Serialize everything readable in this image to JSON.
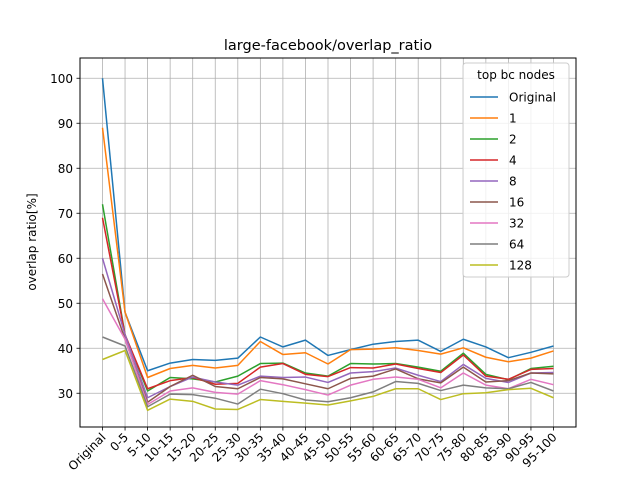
{
  "chart_data": {
    "type": "line",
    "title": "large-facebook/overlap_ratio",
    "xlabel": "",
    "ylabel": "overlap ratio[%]",
    "grid": true,
    "legend_title": "top bc nodes",
    "legend_position": "top-right",
    "ylim": [
      22.5,
      104.5
    ],
    "yticks": [
      30,
      40,
      50,
      60,
      70,
      80,
      90,
      100
    ],
    "categories": [
      "Original",
      "0-5",
      "5-10",
      "10-15",
      "15-20",
      "20-25",
      "25-30",
      "30-35",
      "35-40",
      "40-45",
      "45-50",
      "50-55",
      "55-60",
      "60-65",
      "65-70",
      "70-75",
      "75-80",
      "80-85",
      "85-90",
      "90-95",
      "95-100"
    ],
    "series": [
      {
        "name": "Original",
        "color": "#1f77b4",
        "values": [
          100,
          48,
          35,
          36.7,
          37.5,
          37.3,
          37.8,
          42.5,
          40.3,
          41.8,
          38.4,
          39.7,
          40.9,
          41.5,
          41.8,
          39.3,
          42,
          40.3,
          37.9,
          39.1,
          40.5
        ]
      },
      {
        "name": "1",
        "color": "#ff7f0e",
        "values": [
          89,
          48,
          33.5,
          35.5,
          36.2,
          35.6,
          36.2,
          41.5,
          38.6,
          39,
          36.5,
          39.7,
          39.8,
          40.1,
          39.5,
          38.7,
          40.1,
          38,
          37,
          37.8,
          39.4
        ]
      },
      {
        "name": "2",
        "color": "#2ca02c",
        "values": [
          72,
          43,
          30.5,
          33.5,
          33.2,
          32.5,
          33.8,
          36.6,
          36.7,
          34.5,
          33.8,
          36.6,
          36.5,
          36.6,
          35.8,
          34.9,
          38.9,
          34.2,
          33,
          35.5,
          36
        ]
      },
      {
        "name": "4",
        "color": "#d62728",
        "values": [
          69,
          43,
          31,
          32.8,
          33.5,
          32,
          32.2,
          35.8,
          36.6,
          34.2,
          33.7,
          35.7,
          35.6,
          36.5,
          35.5,
          34.6,
          38.5,
          33.8,
          33.1,
          35.3,
          35.5
        ]
      },
      {
        "name": "8",
        "color": "#9467bd",
        "values": [
          60,
          43,
          29,
          31.5,
          33.6,
          32.5,
          31.8,
          33.8,
          33.5,
          33.6,
          32.4,
          34.5,
          34.8,
          35.6,
          34,
          32.6,
          36.4,
          33.3,
          32.4,
          34.5,
          34.6
        ]
      },
      {
        "name": "16",
        "color": "#8c564b",
        "values": [
          56.5,
          42,
          28,
          31.5,
          34,
          31.5,
          31,
          33.5,
          33.2,
          32.1,
          31,
          33.3,
          33.8,
          35.4,
          33.2,
          32.3,
          35.8,
          32.5,
          32.8,
          34.5,
          34.3
        ]
      },
      {
        "name": "32",
        "color": "#e377c2",
        "values": [
          51,
          42,
          27.5,
          30.5,
          31.2,
          30.2,
          29.8,
          32.8,
          31.9,
          30.8,
          29.6,
          31.8,
          33.1,
          33.6,
          33.1,
          31.2,
          34.5,
          31.8,
          31,
          33.1,
          31.9
        ]
      },
      {
        "name": "64",
        "color": "#7f7f7f",
        "values": [
          42.5,
          40.5,
          27,
          29.8,
          29.7,
          28.9,
          27.6,
          30.9,
          29.9,
          28.5,
          28.1,
          29,
          30.3,
          32.6,
          32.2,
          30.6,
          31.8,
          31.2,
          31,
          32.4,
          30.5
        ]
      },
      {
        "name": "128",
        "color": "#bcbd22",
        "values": [
          37.5,
          39.5,
          26.2,
          28.7,
          28.2,
          26.5,
          26.4,
          28.6,
          28.2,
          27.8,
          27.4,
          28.3,
          29.3,
          31,
          31,
          28.6,
          29.9,
          30.1,
          30.8,
          31.1,
          29
        ]
      }
    ]
  }
}
